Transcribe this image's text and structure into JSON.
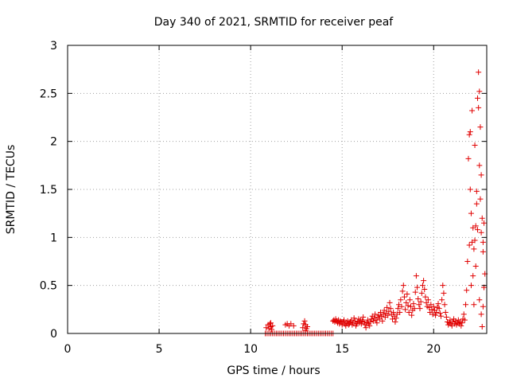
{
  "chart_data": {
    "type": "scatter",
    "title": "Day 340 of 2021, SRMTID for receiver peaf",
    "xlabel": "GPS time / hours",
    "ylabel": "SRMTID / TECUs",
    "xlim": [
      0,
      22.9
    ],
    "ylim": [
      0,
      3
    ],
    "xticks": [
      0,
      5,
      10,
      15,
      20
    ],
    "xtick_labels": [
      "0",
      "5",
      "10",
      "15",
      "20"
    ],
    "yticks": [
      0,
      0.5,
      1,
      1.5,
      2,
      2.5,
      3
    ],
    "ytick_labels": [
      "0",
      "0.5",
      "1",
      "1.5",
      "2",
      "2.5",
      "3"
    ],
    "grid": true,
    "marker": "+",
    "color": "#e00000",
    "series": [
      {
        "name": "SRMTID",
        "points": [
          [
            10.8,
            0.0
          ],
          [
            10.9,
            0.0
          ],
          [
            11.0,
            0.0
          ],
          [
            11.1,
            0.0
          ],
          [
            11.2,
            0.0
          ],
          [
            11.3,
            0.0
          ],
          [
            11.4,
            0.0
          ],
          [
            11.5,
            0.0
          ],
          [
            11.6,
            0.0
          ],
          [
            11.7,
            0.0
          ],
          [
            11.8,
            0.0
          ],
          [
            11.9,
            0.0
          ],
          [
            12.0,
            0.0
          ],
          [
            12.1,
            0.0
          ],
          [
            12.2,
            0.0
          ],
          [
            12.3,
            0.0
          ],
          [
            12.4,
            0.0
          ],
          [
            12.5,
            0.0
          ],
          [
            12.6,
            0.0
          ],
          [
            12.7,
            0.0
          ],
          [
            12.8,
            0.0
          ],
          [
            12.9,
            0.0
          ],
          [
            13.0,
            0.0
          ],
          [
            13.1,
            0.0
          ],
          [
            13.2,
            0.0
          ],
          [
            13.3,
            0.0
          ],
          [
            13.4,
            0.0
          ],
          [
            13.5,
            0.0
          ],
          [
            13.6,
            0.0
          ],
          [
            13.7,
            0.0
          ],
          [
            13.8,
            0.0
          ],
          [
            13.9,
            0.0
          ],
          [
            14.0,
            0.0
          ],
          [
            14.1,
            0.0
          ],
          [
            14.2,
            0.0
          ],
          [
            14.3,
            0.0
          ],
          [
            14.4,
            0.0
          ],
          [
            14.5,
            0.0
          ],
          [
            10.85,
            0.06
          ],
          [
            10.95,
            0.09
          ],
          [
            11.0,
            0.05
          ],
          [
            11.05,
            0.1
          ],
          [
            11.1,
            0.07
          ],
          [
            11.15,
            0.04
          ],
          [
            11.2,
            0.08
          ],
          [
            11.1,
            0.11
          ],
          [
            11.9,
            0.09
          ],
          [
            12.0,
            0.1
          ],
          [
            12.1,
            0.08
          ],
          [
            12.2,
            0.1
          ],
          [
            12.35,
            0.08
          ],
          [
            12.85,
            0.06
          ],
          [
            12.9,
            0.1
          ],
          [
            12.95,
            0.13
          ],
          [
            13.0,
            0.09
          ],
          [
            13.05,
            0.05
          ],
          [
            13.1,
            0.07
          ],
          [
            13.0,
            0.03
          ],
          [
            14.5,
            0.13
          ],
          [
            14.55,
            0.14
          ],
          [
            14.6,
            0.12
          ],
          [
            14.65,
            0.15
          ],
          [
            14.7,
            0.13
          ],
          [
            14.75,
            0.11
          ],
          [
            14.8,
            0.14
          ],
          [
            14.85,
            0.1
          ],
          [
            14.9,
            0.13
          ],
          [
            14.95,
            0.12
          ],
          [
            15.0,
            0.09
          ],
          [
            15.05,
            0.12
          ],
          [
            15.1,
            0.14
          ],
          [
            15.15,
            0.1
          ],
          [
            15.2,
            0.08
          ],
          [
            15.25,
            0.11
          ],
          [
            15.3,
            0.13
          ],
          [
            15.35,
            0.09
          ],
          [
            15.4,
            0.1
          ],
          [
            15.45,
            0.12
          ],
          [
            15.5,
            0.14
          ],
          [
            15.55,
            0.09
          ],
          [
            15.6,
            0.11
          ],
          [
            15.65,
            0.16
          ],
          [
            15.7,
            0.13
          ],
          [
            15.75,
            0.08
          ],
          [
            15.8,
            0.1
          ],
          [
            15.85,
            0.12
          ],
          [
            15.9,
            0.15
          ],
          [
            15.95,
            0.11
          ],
          [
            16.0,
            0.14
          ],
          [
            16.05,
            0.1
          ],
          [
            16.1,
            0.13
          ],
          [
            16.15,
            0.17
          ],
          [
            16.2,
            0.12
          ],
          [
            16.25,
            0.09
          ],
          [
            16.3,
            0.06
          ],
          [
            16.35,
            0.11
          ],
          [
            16.4,
            0.14
          ],
          [
            16.45,
            0.1
          ],
          [
            16.5,
            0.08
          ],
          [
            16.55,
            0.12
          ],
          [
            16.6,
            0.15
          ],
          [
            16.65,
            0.18
          ],
          [
            16.7,
            0.13
          ],
          [
            16.75,
            0.16
          ],
          [
            16.8,
            0.2
          ],
          [
            16.85,
            0.14
          ],
          [
            16.9,
            0.11
          ],
          [
            16.95,
            0.17
          ],
          [
            17.0,
            0.19
          ],
          [
            17.05,
            0.15
          ],
          [
            17.1,
            0.22
          ],
          [
            17.15,
            0.18
          ],
          [
            17.2,
            0.13
          ],
          [
            17.25,
            0.2
          ],
          [
            17.3,
            0.24
          ],
          [
            17.35,
            0.17
          ],
          [
            17.4,
            0.21
          ],
          [
            17.45,
            0.27
          ],
          [
            17.5,
            0.19
          ],
          [
            17.55,
            0.23
          ],
          [
            17.6,
            0.32
          ],
          [
            17.65,
            0.26
          ],
          [
            17.7,
            0.2
          ],
          [
            17.75,
            0.15
          ],
          [
            17.8,
            0.22
          ],
          [
            17.85,
            0.18
          ],
          [
            17.9,
            0.12
          ],
          [
            17.95,
            0.16
          ],
          [
            18.0,
            0.2
          ],
          [
            18.05,
            0.26
          ],
          [
            18.1,
            0.3
          ],
          [
            18.15,
            0.22
          ],
          [
            18.2,
            0.35
          ],
          [
            18.25,
            0.28
          ],
          [
            18.3,
            0.44
          ],
          [
            18.35,
            0.5
          ],
          [
            18.4,
            0.38
          ],
          [
            18.45,
            0.25
          ],
          [
            18.5,
            0.32
          ],
          [
            18.55,
            0.41
          ],
          [
            18.6,
            0.29
          ],
          [
            18.65,
            0.22
          ],
          [
            18.7,
            0.35
          ],
          [
            18.75,
            0.28
          ],
          [
            18.8,
            0.19
          ],
          [
            18.85,
            0.24
          ],
          [
            18.9,
            0.31
          ],
          [
            18.95,
            0.26
          ],
          [
            19.0,
            0.43
          ],
          [
            19.05,
            0.6
          ],
          [
            19.1,
            0.48
          ],
          [
            19.15,
            0.36
          ],
          [
            19.2,
            0.3
          ],
          [
            19.25,
            0.26
          ],
          [
            19.3,
            0.33
          ],
          [
            19.35,
            0.42
          ],
          [
            19.4,
            0.5
          ],
          [
            19.45,
            0.55
          ],
          [
            19.5,
            0.46
          ],
          [
            19.55,
            0.38
          ],
          [
            19.6,
            0.32
          ],
          [
            19.65,
            0.28
          ],
          [
            19.7,
            0.35
          ],
          [
            19.75,
            0.27
          ],
          [
            19.8,
            0.22
          ],
          [
            19.85,
            0.3
          ],
          [
            19.9,
            0.25
          ],
          [
            19.95,
            0.2
          ],
          [
            20.0,
            0.28
          ],
          [
            20.05,
            0.24
          ],
          [
            20.1,
            0.19
          ],
          [
            20.15,
            0.22
          ],
          [
            20.2,
            0.27
          ],
          [
            20.25,
            0.31
          ],
          [
            20.3,
            0.26
          ],
          [
            20.35,
            0.21
          ],
          [
            20.4,
            0.18
          ],
          [
            20.45,
            0.35
          ],
          [
            20.5,
            0.5
          ],
          [
            20.55,
            0.42
          ],
          [
            20.6,
            0.3
          ],
          [
            20.65,
            0.22
          ],
          [
            20.7,
            0.17
          ],
          [
            20.75,
            0.12
          ],
          [
            20.8,
            0.09
          ],
          [
            20.85,
            0.11
          ],
          [
            20.9,
            0.14
          ],
          [
            20.95,
            0.1
          ],
          [
            21.0,
            0.08
          ],
          [
            21.05,
            0.12
          ],
          [
            21.1,
            0.15
          ],
          [
            21.15,
            0.1
          ],
          [
            21.2,
            0.13
          ],
          [
            21.25,
            0.09
          ],
          [
            21.3,
            0.11
          ],
          [
            21.35,
            0.14
          ],
          [
            21.4,
            0.1
          ],
          [
            21.45,
            0.12
          ],
          [
            21.5,
            0.08
          ],
          [
            21.55,
            0.11
          ],
          [
            21.6,
            0.15
          ],
          [
            21.65,
            0.2
          ],
          [
            21.7,
            0.14
          ],
          [
            21.75,
            0.3
          ],
          [
            21.8,
            0.45
          ],
          [
            21.85,
            0.75
          ],
          [
            21.9,
            1.82
          ],
          [
            21.95,
            2.07
          ],
          [
            22.0,
            1.5
          ],
          [
            22.05,
            1.25
          ],
          [
            22.1,
            0.95
          ],
          [
            22.15,
            0.6
          ],
          [
            22.2,
            0.88
          ],
          [
            22.25,
            0.97
          ],
          [
            22.3,
            1.12
          ],
          [
            22.35,
            1.35
          ],
          [
            22.4,
            1.08
          ],
          [
            22.45,
            2.72
          ],
          [
            22.5,
            2.52
          ],
          [
            22.55,
            2.15
          ],
          [
            22.6,
            1.65
          ],
          [
            22.65,
            1.2
          ],
          [
            22.7,
            0.85
          ],
          [
            22.75,
            1.15
          ],
          [
            22.8,
            0.62
          ],
          [
            22.0,
            2.1
          ],
          [
            22.1,
            2.32
          ],
          [
            22.25,
            1.96
          ],
          [
            22.4,
            2.45
          ],
          [
            22.45,
            2.35
          ],
          [
            22.5,
            1.75
          ],
          [
            22.55,
            1.4
          ],
          [
            22.35,
            1.48
          ],
          [
            22.15,
            1.1
          ],
          [
            22.3,
            0.7
          ],
          [
            22.5,
            0.35
          ],
          [
            22.6,
            0.2
          ],
          [
            22.7,
            0.28
          ],
          [
            22.75,
            0.48
          ],
          [
            22.65,
            0.07
          ],
          [
            22.2,
            0.3
          ],
          [
            22.05,
            0.5
          ],
          [
            21.95,
            0.92
          ],
          [
            22.6,
            1.05
          ],
          [
            22.7,
            0.95
          ]
        ]
      }
    ]
  }
}
